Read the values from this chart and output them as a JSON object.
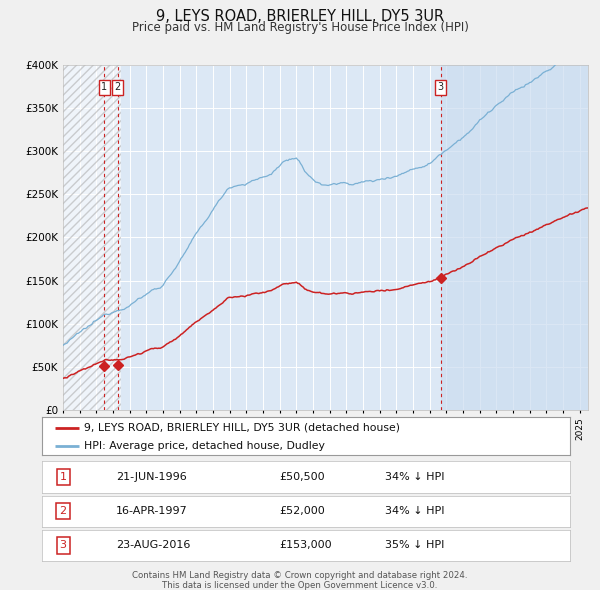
{
  "title": "9, LEYS ROAD, BRIERLEY HILL, DY5 3UR",
  "subtitle": "Price paid vs. HM Land Registry's House Price Index (HPI)",
  "ylim": [
    0,
    400000
  ],
  "xlim_start": 1994.0,
  "xlim_end": 2025.5,
  "fig_bg_color": "#f0f0f0",
  "plot_bg_color": "#dce8f5",
  "hatch_bg_color": "#ffffff",
  "hpi_color": "#7ab0d4",
  "price_color": "#cc2222",
  "grid_color": "#ffffff",
  "vline_color": "#cc2222",
  "hatch_right_start": 2016.65,
  "sale_dates": [
    1996.47,
    1997.29,
    2016.65
  ],
  "sale_prices": [
    50500,
    52000,
    153000
  ],
  "sale_labels": [
    "1",
    "2",
    "3"
  ],
  "legend_price_label": "9, LEYS ROAD, BRIERLEY HILL, DY5 3UR (detached house)",
  "legend_hpi_label": "HPI: Average price, detached house, Dudley",
  "table_data": [
    [
      "1",
      "21-JUN-1996",
      "£50,500",
      "34% ↓ HPI"
    ],
    [
      "2",
      "16-APR-1997",
      "£52,000",
      "34% ↓ HPI"
    ],
    [
      "3",
      "23-AUG-2016",
      "£153,000",
      "35% ↓ HPI"
    ]
  ],
  "footer_line1": "Contains HM Land Registry data © Crown copyright and database right 2024.",
  "footer_line2": "This data is licensed under the Open Government Licence v3.0."
}
